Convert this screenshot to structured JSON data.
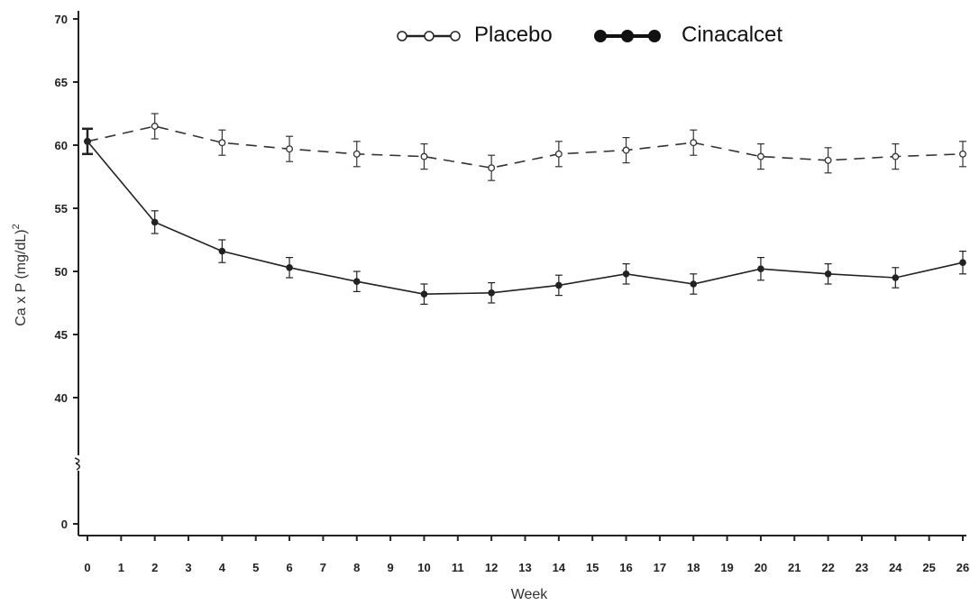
{
  "chart_data": {
    "type": "line",
    "xlabel": "Week",
    "ylabel": "Ca x P (mg/dL)",
    "ylabel_superscript": "2",
    "x": [
      0,
      2,
      4,
      6,
      8,
      10,
      12,
      14,
      16,
      18,
      20,
      22,
      24,
      26
    ],
    "x_ticks": [
      0,
      1,
      2,
      3,
      4,
      5,
      6,
      7,
      8,
      9,
      10,
      11,
      12,
      13,
      14,
      15,
      16,
      17,
      18,
      19,
      20,
      21,
      22,
      23,
      24,
      25,
      26
    ],
    "y_ticks": [
      0,
      40,
      45,
      50,
      55,
      60,
      65,
      70
    ],
    "xlim": [
      0,
      26
    ],
    "ylim": [
      0,
      70
    ],
    "y_axis_break": [
      0,
      40
    ],
    "grid": false,
    "legend_position": "top-center",
    "series": [
      {
        "name": "Placebo",
        "line_style": "dashed",
        "marker": "open-circle",
        "color": "#333333",
        "values": [
          60.3,
          61.5,
          60.2,
          59.7,
          59.3,
          59.1,
          58.2,
          59.3,
          59.6,
          60.2,
          59.1,
          58.8,
          59.1,
          59.3
        ],
        "errors": [
          1.0,
          1.0,
          1.0,
          1.0,
          1.0,
          1.0,
          1.0,
          1.0,
          1.0,
          1.0,
          1.0,
          1.0,
          1.0,
          1.0
        ]
      },
      {
        "name": "Cinacalcet",
        "line_style": "solid",
        "marker": "filled-circle",
        "color": "#222222",
        "values": [
          60.3,
          53.9,
          51.6,
          50.3,
          49.2,
          48.2,
          48.3,
          48.9,
          49.8,
          49.0,
          50.2,
          49.8,
          49.5,
          50.7
        ],
        "errors": [
          1.0,
          0.9,
          0.9,
          0.8,
          0.8,
          0.8,
          0.8,
          0.8,
          0.8,
          0.8,
          0.9,
          0.8,
          0.8,
          0.9
        ]
      }
    ]
  }
}
